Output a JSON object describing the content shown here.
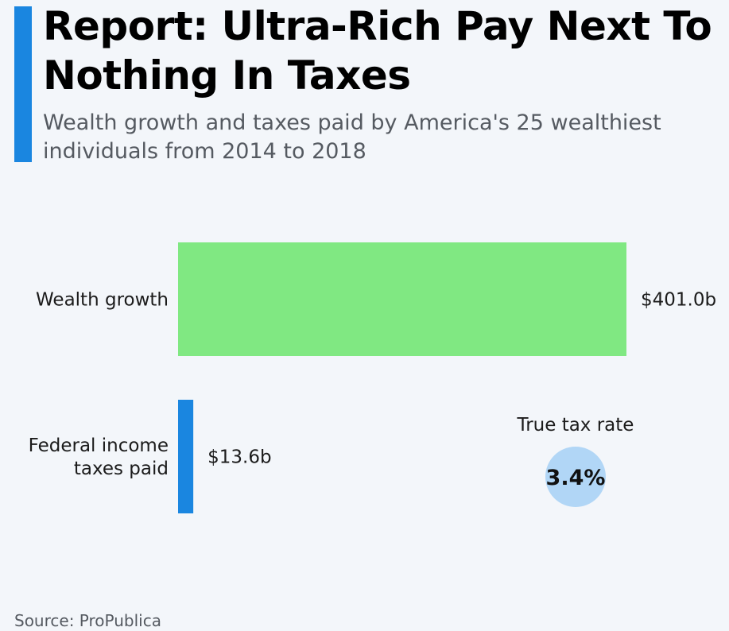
{
  "header": {
    "title": "Report: Ultra-Rich Pay Next To Nothing In Taxes",
    "subtitle": "Wealth growth and taxes paid by America's 25 wealthiest individuals from 2014 to 2018"
  },
  "footer": {
    "source": "Source: ProPublica"
  },
  "colors": {
    "accent": "#1a86e0",
    "wealth_bar": "#80e882",
    "tax_bar": "#1a86e0",
    "rate_bubble": "#b1d6f6",
    "background": "#f3f6fa"
  },
  "chart_data": {
    "type": "bar",
    "orientation": "horizontal",
    "title": "Report: Ultra-Rich Pay Next To Nothing In Taxes",
    "subtitle": "Wealth growth and taxes paid by America's 25 wealthiest individuals from 2014 to 2018",
    "categories": [
      "Wealth growth",
      "Federal income taxes paid"
    ],
    "category_lines": [
      [
        "Wealth growth"
      ],
      [
        "Federal income",
        "taxes paid"
      ]
    ],
    "values": [
      401.0,
      13.6
    ],
    "value_labels": [
      "$401.0b",
      "$13.6b"
    ],
    "unit": "billion USD",
    "grid": false,
    "annotation": {
      "label": "True tax rate",
      "value": 3.4,
      "value_label": "3.4%"
    },
    "source": "Source: ProPublica"
  }
}
